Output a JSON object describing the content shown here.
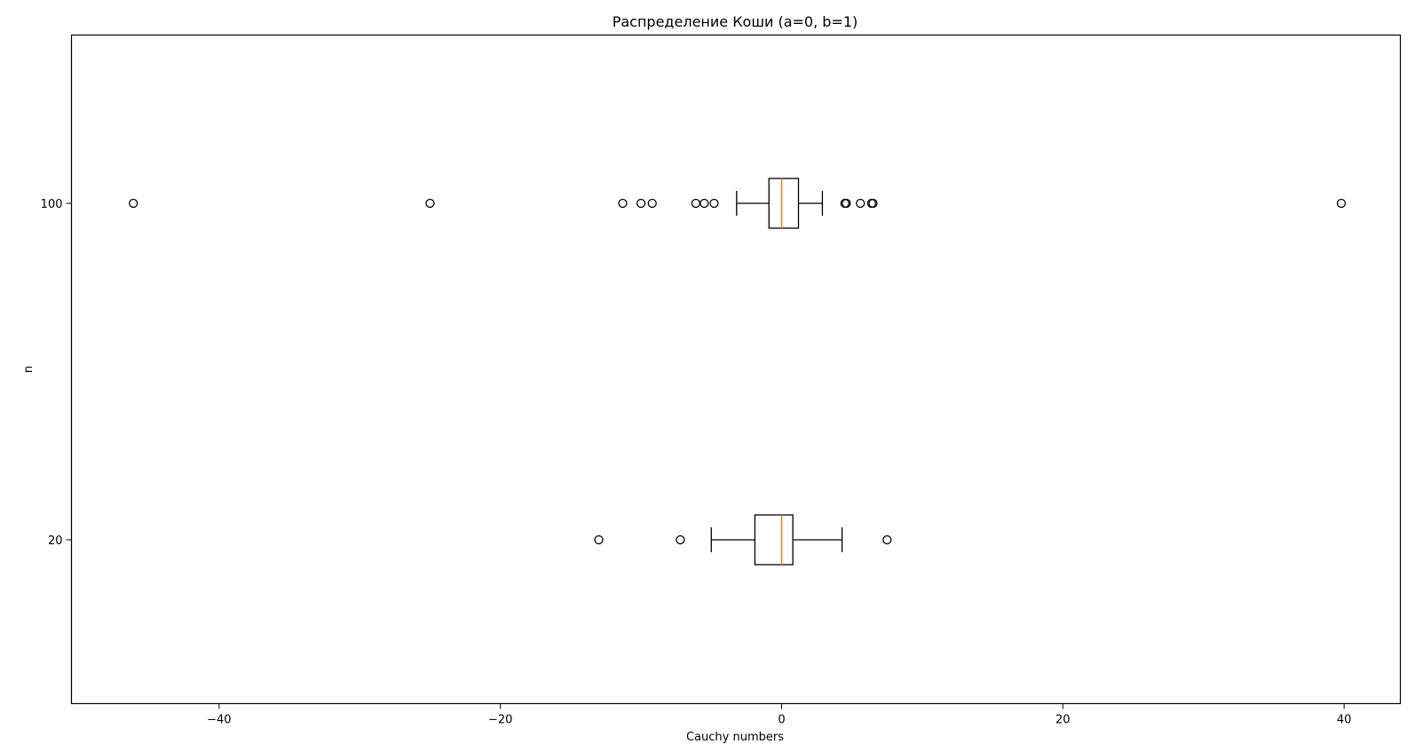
{
  "chart_data": {
    "type": "boxplot",
    "orientation": "horizontal",
    "title": "Распределение Коши (a=0, b=1)",
    "xlabel": "Cauchy numbers",
    "ylabel": "n",
    "xlim": [
      -50.5,
      44.0
    ],
    "xticks": [
      -40,
      -20,
      0,
      20,
      40
    ],
    "xtick_labels": [
      "−40",
      "−20",
      "0",
      "20",
      "40"
    ],
    "categories": [
      "20",
      "100"
    ],
    "grid": false,
    "colors": {
      "box": "#000000",
      "median": "#ff7f0e",
      "outlier_edge": "#000000"
    },
    "boxes": [
      {
        "label": "20",
        "whisker_low": -5.0,
        "q1": -1.9,
        "median": 0.0,
        "q3": 0.8,
        "whisker_high": 4.3,
        "fliers": [
          -13.0,
          -7.2,
          7.5
        ]
      },
      {
        "label": "100",
        "whisker_low": -3.2,
        "q1": -0.9,
        "median": 0.0,
        "q3": 1.2,
        "whisker_high": 2.9,
        "fliers": [
          -46.1,
          -25.0,
          -11.3,
          -10.0,
          -9.2,
          -6.1,
          -5.5,
          -4.8,
          4.5,
          4.6,
          5.6,
          6.4,
          6.5,
          39.8
        ]
      }
    ]
  }
}
